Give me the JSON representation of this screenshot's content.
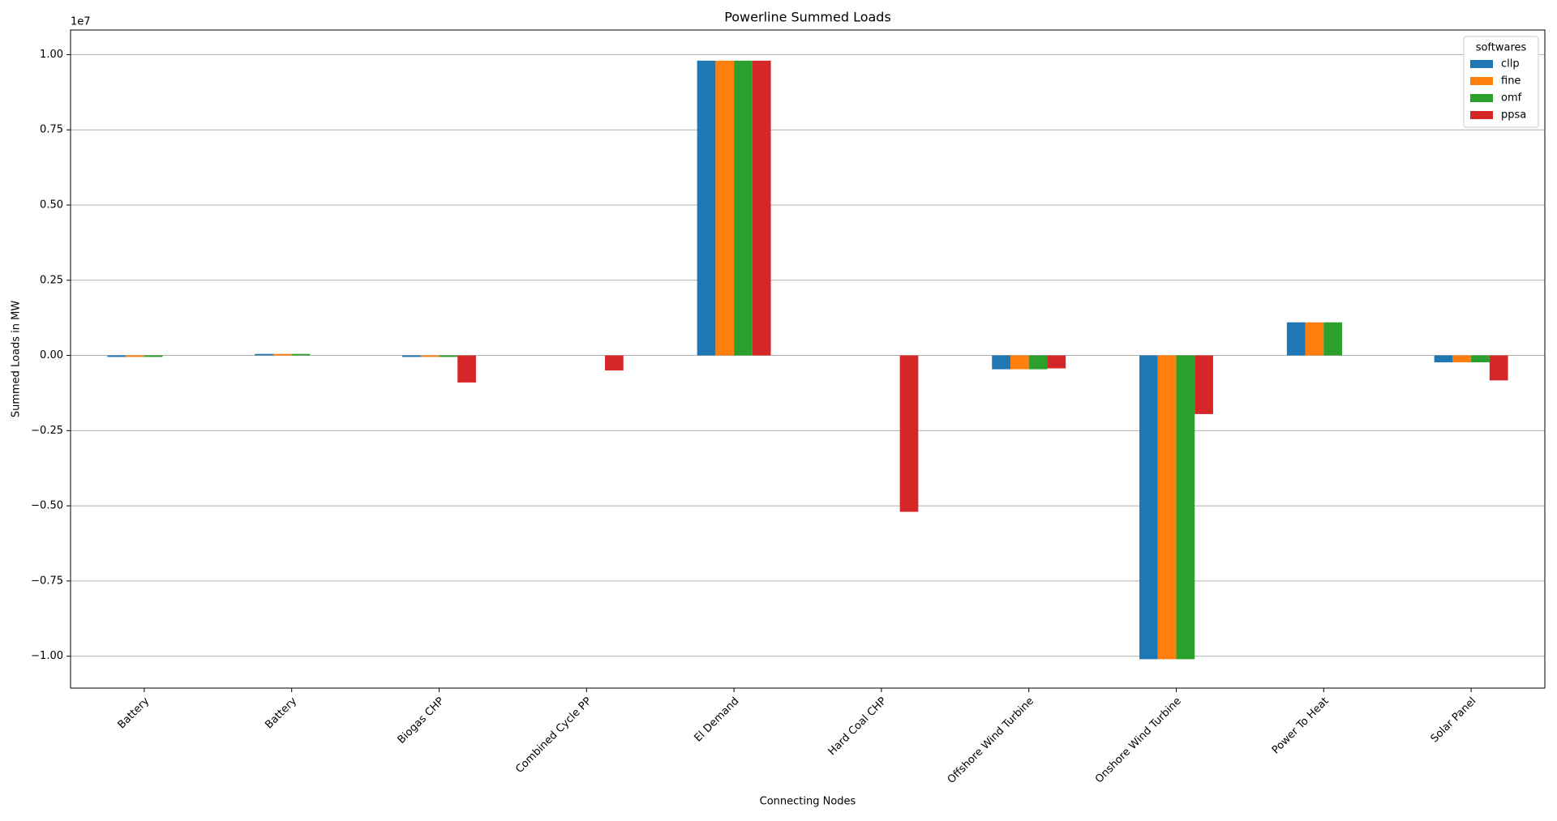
{
  "chart_data": {
    "type": "bar",
    "title": "Powerline Summed Loads",
    "x_label": "Connecting Nodes",
    "y_label": "Summed Loads in MW",
    "y_offset_label": "1e7",
    "legend_title": "softwares",
    "legend_position": "upper right",
    "grid": "y",
    "categories": [
      "Battery",
      "Battery",
      "Biogas CHP",
      "Combined Cycle PP",
      "El Demand",
      "Hard Coal CHP",
      "Offshore Wind Turbine",
      "Onshore Wind Turbine",
      "Power To Heat",
      "Solar Panel"
    ],
    "series": [
      {
        "name": "cllp",
        "color": "#1f77b4",
        "values": [
          -0.005,
          0.005,
          -0.005,
          null,
          0.98,
          null,
          -0.046,
          -1.01,
          0.11,
          -0.023
        ]
      },
      {
        "name": "fine",
        "color": "#ff7f0e",
        "values": [
          -0.005,
          0.005,
          -0.005,
          null,
          0.98,
          null,
          -0.046,
          -1.01,
          0.11,
          -0.023
        ]
      },
      {
        "name": "omf",
        "color": "#2ca02c",
        "values": [
          -0.005,
          0.005,
          -0.005,
          null,
          0.98,
          null,
          -0.046,
          -1.01,
          0.11,
          -0.023
        ]
      },
      {
        "name": "ppsa",
        "color": "#d62728",
        "values": [
          null,
          null,
          -0.09,
          -0.05,
          0.98,
          -0.52,
          -0.043,
          -0.195,
          null,
          -0.083
        ]
      }
    ],
    "ylim": [
      -1.106,
      1.082
    ],
    "yticks": [
      {
        "value": -1,
        "label": "−1.00"
      },
      {
        "value": -0.75,
        "label": "−0.75"
      },
      {
        "value": -0.5,
        "label": "−0.50"
      },
      {
        "value": -0.25,
        "label": "−0.25"
      },
      {
        "value": 0,
        "label": "0.00"
      },
      {
        "value": 0.25,
        "label": "0.25"
      },
      {
        "value": 0.5,
        "label": "0.50"
      },
      {
        "value": 0.75,
        "label": "0.75"
      },
      {
        "value": 1,
        "label": "1.00"
      }
    ]
  }
}
